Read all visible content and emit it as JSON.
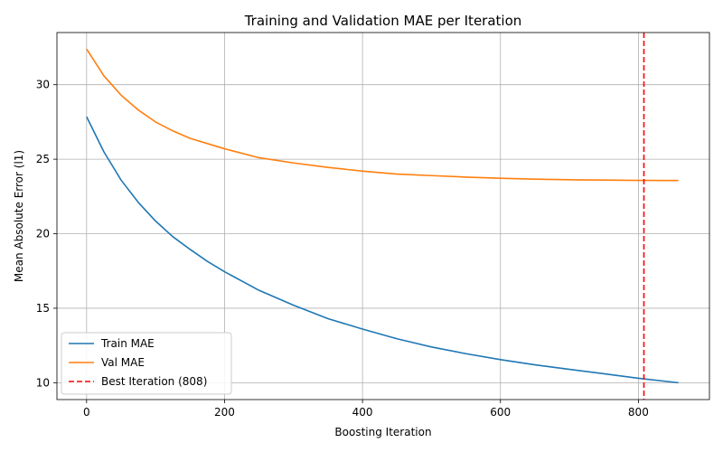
{
  "chart_data": {
    "type": "line",
    "title": "Training and Validation MAE per Iteration",
    "xlabel": "Boosting Iteration",
    "ylabel": "Mean Absolute Error (l1)",
    "xlim": [
      -43,
      903
    ],
    "ylim": [
      8.87,
      33.5
    ],
    "xticks": [
      0,
      200,
      400,
      600,
      800
    ],
    "yticks": [
      10,
      15,
      20,
      25,
      30
    ],
    "grid": true,
    "legend_position": "lower-left",
    "series": [
      {
        "name": "Train MAE",
        "color": "#1f77b4",
        "x": [
          0,
          25,
          50,
          75,
          100,
          125,
          150,
          175,
          200,
          250,
          300,
          350,
          400,
          450,
          500,
          550,
          600,
          650,
          700,
          750,
          800,
          858
        ],
        "y": [
          27.85,
          25.5,
          23.6,
          22.1,
          20.85,
          19.8,
          18.95,
          18.15,
          17.45,
          16.2,
          15.2,
          14.3,
          13.6,
          12.95,
          12.4,
          11.95,
          11.55,
          11.2,
          10.9,
          10.6,
          10.3,
          10.0
        ]
      },
      {
        "name": "Val MAE",
        "color": "#ff7f0e",
        "x": [
          0,
          25,
          50,
          75,
          100,
          125,
          150,
          175,
          200,
          250,
          300,
          350,
          400,
          450,
          500,
          550,
          600,
          650,
          700,
          750,
          800,
          858
        ],
        "y": [
          32.4,
          30.6,
          29.3,
          28.3,
          27.5,
          26.9,
          26.4,
          26.05,
          25.7,
          25.1,
          24.75,
          24.45,
          24.2,
          24.0,
          23.9,
          23.8,
          23.72,
          23.66,
          23.62,
          23.6,
          23.58,
          23.57
        ]
      }
    ],
    "vline": {
      "name": "Best Iteration (808)",
      "x": 808,
      "color": "#ff0000",
      "style": "dashed"
    }
  }
}
